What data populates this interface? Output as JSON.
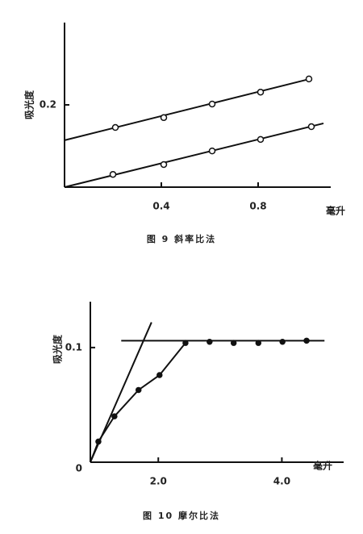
{
  "chart_data": [
    {
      "type": "scatter",
      "caption": "图 9 斜率比法",
      "ylabel": "吸光度",
      "xlabel": "毫升",
      "xlim": [
        0,
        1.1
      ],
      "ylim": [
        0,
        0.4
      ],
      "xticks": [
        0.4,
        0.8
      ],
      "yticks": [
        0.2
      ],
      "color": "#111",
      "series": [
        {
          "x": [
            0,
            1.02
          ],
          "values": [
            0.114,
            0.264
          ],
          "marker": "none"
        },
        {
          "x": [
            0,
            1.07
          ],
          "values": [
            0,
            0.155
          ],
          "marker": "none"
        },
        {
          "x": [
            0.21,
            0.41,
            0.61,
            0.81,
            1.01
          ],
          "values": [
            0.145,
            0.169,
            0.202,
            0.231,
            0.263
          ],
          "marker": "open-circle"
        },
        {
          "x": [
            0.2,
            0.41,
            0.61,
            0.81,
            1.02
          ],
          "values": [
            0.031,
            0.055,
            0.088,
            0.116,
            0.147
          ],
          "marker": "open-circle"
        }
      ]
    },
    {
      "type": "scatter",
      "caption": "图 10 摩尔比法",
      "ylabel": "吸光度",
      "xlabel": "毫升",
      "xlim": [
        0.9,
        5.0
      ],
      "ylim": [
        0,
        0.14
      ],
      "xticks": [
        {
          "value": 2,
          "label": "2.0"
        },
        {
          "value": 4,
          "label": "4.0"
        }
      ],
      "yticks": [
        0,
        0.1
      ],
      "color": "#111",
      "series": [
        {
          "x": [
            0.9,
            1.89
          ],
          "values": [
            0,
            0.122
          ],
          "marker": "none"
        },
        {
          "x": [
            1.4,
            4.69
          ],
          "values": [
            0.106,
            0.106
          ],
          "marker": "none"
        },
        {
          "x": [
            0.9,
            1.03,
            1.29,
            1.68,
            2.02,
            2.44
          ],
          "values": [
            0,
            0.018,
            0.04,
            0.063,
            0.076,
            0.104
          ],
          "marker": "none"
        },
        {
          "x": [
            1.03,
            1.29,
            1.68,
            2.02,
            2.44,
            2.83,
            3.22,
            3.62,
            4.01,
            4.4
          ],
          "values": [
            0.018,
            0.04,
            0.063,
            0.076,
            0.104,
            0.105,
            0.104,
            0.104,
            0.105,
            0.106
          ],
          "marker": "filled-circle"
        }
      ]
    }
  ]
}
